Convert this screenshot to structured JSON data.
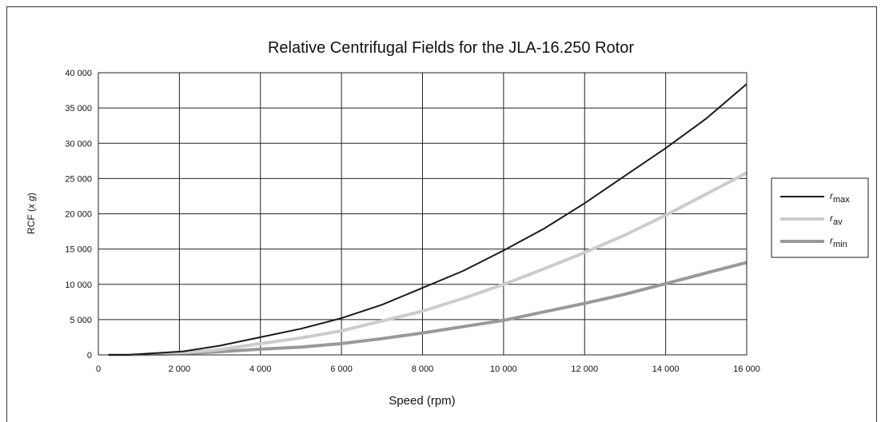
{
  "chart_data": {
    "type": "line",
    "title": "Relative Centrifugal Fields for the JLA-16.250 Rotor",
    "xlabel": "Speed (rpm)",
    "ylabel": "RCF (x g)",
    "ylabel_prefix": "RCF (",
    "ylabel_var": "x g",
    "ylabel_suffix": ")",
    "xlim": [
      0,
      16000
    ],
    "ylim": [
      0,
      40000
    ],
    "x_ticks": [
      0,
      2000,
      4000,
      6000,
      8000,
      10000,
      12000,
      14000,
      16000
    ],
    "x_tick_labels": [
      "0",
      "2 000",
      "4 000",
      "6 000",
      "8 000",
      "10 000",
      "12 000",
      "14 000",
      "16 000"
    ],
    "y_ticks": [
      0,
      5000,
      10000,
      15000,
      20000,
      25000,
      30000,
      35000,
      40000
    ],
    "y_tick_labels": [
      "0",
      "5 000",
      "10 000",
      "15 000",
      "20 000",
      "25 000",
      "30 000",
      "35 000",
      "40 000"
    ],
    "grid": true,
    "legend_position": "right",
    "series": [
      {
        "name": "r max",
        "legend_main": "r",
        "legend_sub": "max",
        "color": "#1a1a1a",
        "width": 2,
        "points": [
          [
            250,
            0
          ],
          [
            750,
            0
          ],
          [
            2100,
            500
          ],
          [
            3000,
            1300
          ],
          [
            4000,
            2500
          ],
          [
            5000,
            3700
          ],
          [
            6000,
            5200
          ],
          [
            7000,
            7100
          ],
          [
            8000,
            9500
          ],
          [
            9000,
            11900
          ],
          [
            10000,
            14800
          ],
          [
            11000,
            17900
          ],
          [
            12000,
            21500
          ],
          [
            13000,
            25400
          ],
          [
            14000,
            29300
          ],
          [
            15000,
            33500
          ],
          [
            16000,
            38400
          ]
        ]
      },
      {
        "name": "r av",
        "legend_main": "r",
        "legend_sub": "av",
        "color": "#cccccc",
        "width": 4,
        "points": [
          [
            250,
            0
          ],
          [
            750,
            0
          ],
          [
            2100,
            300
          ],
          [
            3000,
            750
          ],
          [
            4000,
            1600
          ],
          [
            5000,
            2400
          ],
          [
            6000,
            3400
          ],
          [
            7000,
            4800
          ],
          [
            8000,
            6200
          ],
          [
            9000,
            8000
          ],
          [
            10000,
            10000
          ],
          [
            11000,
            12200
          ],
          [
            12000,
            14500
          ],
          [
            13000,
            17000
          ],
          [
            14000,
            19800
          ],
          [
            15000,
            22800
          ],
          [
            16000,
            25800
          ]
        ]
      },
      {
        "name": "r min",
        "legend_main": "r",
        "legend_sub": "min",
        "color": "#999999",
        "width": 4,
        "points": [
          [
            250,
            0
          ],
          [
            750,
            0
          ],
          [
            2100,
            200
          ],
          [
            3000,
            450
          ],
          [
            4000,
            800
          ],
          [
            5000,
            1100
          ],
          [
            6000,
            1600
          ],
          [
            7000,
            2300
          ],
          [
            8000,
            3100
          ],
          [
            9000,
            4000
          ],
          [
            10000,
            4900
          ],
          [
            11000,
            6100
          ],
          [
            12000,
            7300
          ],
          [
            13000,
            8600
          ],
          [
            14000,
            10100
          ],
          [
            15000,
            11600
          ],
          [
            16000,
            13100
          ]
        ]
      }
    ]
  }
}
